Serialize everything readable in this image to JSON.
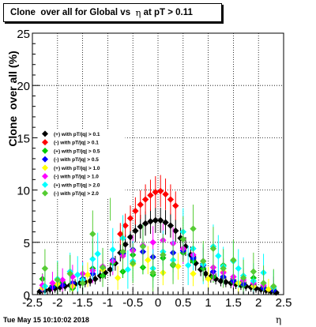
{
  "chart_data": {
    "type": "scatter",
    "title_parts": [
      "Clone  over all for Global vs  ",
      "η",
      " at pT > 0.11"
    ],
    "ylabel": "Clone  over all (%)",
    "xlabel": "η",
    "xlim": [
      -2.5,
      2.5
    ],
    "ylim": [
      0,
      25
    ],
    "x_ticks": [
      "-2.5",
      "-2",
      "-1.5",
      "-1",
      "-0.5",
      "0",
      "0.5",
      "1",
      "1.5",
      "2",
      "2.5"
    ],
    "y_ticks": [
      "0",
      "5",
      "10",
      "15",
      "20",
      "25"
    ],
    "grid": true,
    "legend_position": "left-middle",
    "series": [
      {
        "name": "(+) with pT/|q| > 0.1",
        "color": "#000000",
        "marker": "diamond",
        "x": [
          -2.35,
          -2.25,
          -2.15,
          -2.05,
          -1.95,
          -1.85,
          -1.75,
          -1.65,
          -1.55,
          -1.45,
          -1.35,
          -1.25,
          -1.15,
          -1.05,
          -0.95,
          -0.85,
          -0.75,
          -0.65,
          -0.55,
          -0.45,
          -0.35,
          -0.25,
          -0.15,
          -0.05,
          0.05,
          0.15,
          0.25,
          0.35,
          0.45,
          0.55,
          0.65,
          0.75,
          0.85,
          0.95,
          1.05,
          1.15,
          1.25,
          1.35,
          1.45,
          1.55,
          1.65,
          1.75,
          1.85,
          1.95,
          2.05,
          2.15,
          2.25,
          2.35
        ],
        "y": [
          0.3,
          0.4,
          0.5,
          0.6,
          0.7,
          0.8,
          0.9,
          1.0,
          1.1,
          1.2,
          1.3,
          1.5,
          1.8,
          2.1,
          2.4,
          3.0,
          4.0,
          4.8,
          5.5,
          6.1,
          6.5,
          6.8,
          7.0,
          7.1,
          7.1,
          6.9,
          6.6,
          6.1,
          5.4,
          4.6,
          3.8,
          3.0,
          2.4,
          2.0,
          1.7,
          1.5,
          1.3,
          1.2,
          1.1,
          1.0,
          0.9,
          0.8,
          0.7,
          0.6,
          0.5,
          0.4,
          0.3,
          0.2
        ]
      },
      {
        "name": "(-) with pT/|q| > 0.1",
        "color": "#ff0000",
        "marker": "diamond",
        "x": [
          -0.75,
          -0.65,
          -0.55,
          -0.45,
          -0.35,
          -0.25,
          -0.15,
          -0.05,
          0.05,
          0.15,
          0.25,
          0.35
        ],
        "y": [
          5.8,
          6.6,
          7.3,
          8.0,
          8.6,
          9.1,
          9.5,
          9.8,
          9.9,
          9.6,
          9.1,
          8.5
        ]
      },
      {
        "name": "(+) with pT/|q| > 0.5",
        "color": "#00cc00",
        "marker": "diamond",
        "x": [
          -2.3,
          -2.1,
          -1.9,
          -1.7,
          -1.5,
          -1.3,
          -1.1,
          -0.9,
          -0.7,
          -0.5,
          -0.3,
          -0.1,
          0.1,
          0.3,
          0.5,
          0.7,
          0.9,
          1.1,
          1.3,
          1.5,
          1.7,
          1.9,
          2.1,
          2.3
        ],
        "y": [
          1.5,
          0.8,
          1.2,
          0.6,
          1.5,
          2.5,
          1.8,
          3.0,
          2.2,
          3.8,
          2.6,
          1.9,
          3.5,
          2.8,
          4.0,
          3.2,
          2.5,
          1.7,
          2.8,
          1.2,
          0.9,
          1.6,
          0.7,
          0.5
        ]
      },
      {
        "name": "(-) with pT/|q| > 0.5",
        "color": "#0000ff",
        "marker": "diamond",
        "x": [
          -2.3,
          -2.1,
          -1.9,
          -1.7,
          -1.5,
          -1.3,
          -1.1,
          -0.9,
          -0.7,
          -0.5,
          -0.3,
          -0.1,
          0.1,
          0.3,
          0.5,
          0.7,
          0.9,
          1.1,
          1.3,
          1.5,
          1.7,
          1.9,
          2.1,
          2.3
        ],
        "y": [
          0.5,
          0.7,
          0.9,
          1.1,
          1.5,
          2.0,
          2.6,
          3.3,
          3.9,
          4.3,
          4.1,
          3.6,
          3.8,
          4.0,
          4.2,
          3.5,
          2.8,
          2.2,
          1.7,
          1.3,
          1.0,
          0.8,
          0.6,
          0.4
        ]
      },
      {
        "name": "(+) with pT/|q| > 1.0",
        "color": "#ffff00",
        "marker": "diamond",
        "x": [
          -2.3,
          -2.0,
          -1.7,
          -1.4,
          -1.1,
          -0.8,
          -0.5,
          -0.2,
          0.1,
          0.4,
          0.7,
          1.0,
          1.3,
          1.6,
          1.9,
          2.2
        ],
        "y": [
          0.6,
          1.0,
          0.8,
          1.9,
          2.4,
          1.6,
          2.9,
          3.3,
          2.1,
          2.7,
          2.0,
          1.5,
          2.2,
          1.1,
          0.8,
          0.5
        ]
      },
      {
        "name": "(-) with pT/|q| > 1.0",
        "color": "#ff00ff",
        "marker": "diamond",
        "x": [
          -2.3,
          -2.1,
          -1.9,
          -1.7,
          -1.5,
          -1.3,
          -1.1,
          -0.9,
          -0.7,
          -0.5,
          -0.3,
          -0.1,
          0.1,
          0.3,
          0.5,
          0.7,
          0.9,
          1.1,
          1.3,
          1.5,
          1.7,
          1.9,
          2.1,
          2.3
        ],
        "y": [
          0.9,
          1.1,
          1.4,
          1.7,
          2.0,
          2.3,
          2.7,
          3.2,
          3.7,
          4.2,
          4.7,
          5.0,
          5.2,
          4.9,
          4.4,
          3.8,
          3.2,
          2.6,
          2.1,
          1.7,
          1.4,
          1.1,
          0.9,
          0.7
        ]
      },
      {
        "name": "(+) with pT/|q| > 2.0",
        "color": "#00ffff",
        "marker": "diamond",
        "x": [
          -2.25,
          -2.0,
          -1.75,
          -1.5,
          -1.3,
          -1.1,
          -0.9,
          -0.7,
          -0.5,
          -0.3,
          -0.1,
          0.1,
          0.3,
          0.5,
          0.7,
          0.9,
          1.1,
          1.3,
          1.5,
          1.7,
          1.9,
          2.1,
          2.3,
          -1.2,
          1.2,
          -0.6,
          0.6,
          -1.6,
          1.6
        ],
        "y": [
          0.8,
          1.5,
          2.2,
          1.4,
          3.4,
          2.6,
          4.3,
          5.4,
          3.2,
          4.6,
          2.5,
          4.1,
          3.3,
          6.0,
          4.4,
          2.9,
          4.6,
          2.7,
          3.2,
          1.8,
          1.3,
          2.1,
          0.7,
          3.9,
          3.7,
          2.4,
          2.8,
          1.9,
          2.5
        ]
      },
      {
        "name": "(-) with pT/|q| > 2.0",
        "color": "#55cc33",
        "marker": "diamond",
        "x": [
          -2.25,
          -2.0,
          -1.75,
          -1.5,
          -1.3,
          -1.1,
          -0.95,
          -0.7,
          -0.5,
          -0.3,
          -0.1,
          0.1,
          0.3,
          0.5,
          0.7,
          0.9,
          1.1,
          1.3,
          1.5,
          1.7,
          1.9,
          2.1,
          2.3
        ],
        "y": [
          2.5,
          1.4,
          2.0,
          1.1,
          5.8,
          2.6,
          9.8,
          4.1,
          3.0,
          4.6,
          2.1,
          3.8,
          2.9,
          5.3,
          6.3,
          3.2,
          4.4,
          2.5,
          3.3,
          1.6,
          2.2,
          1.1,
          0.8
        ]
      }
    ]
  },
  "footer": {
    "timestamp": "Tue May 15 10:10:02 2018"
  }
}
